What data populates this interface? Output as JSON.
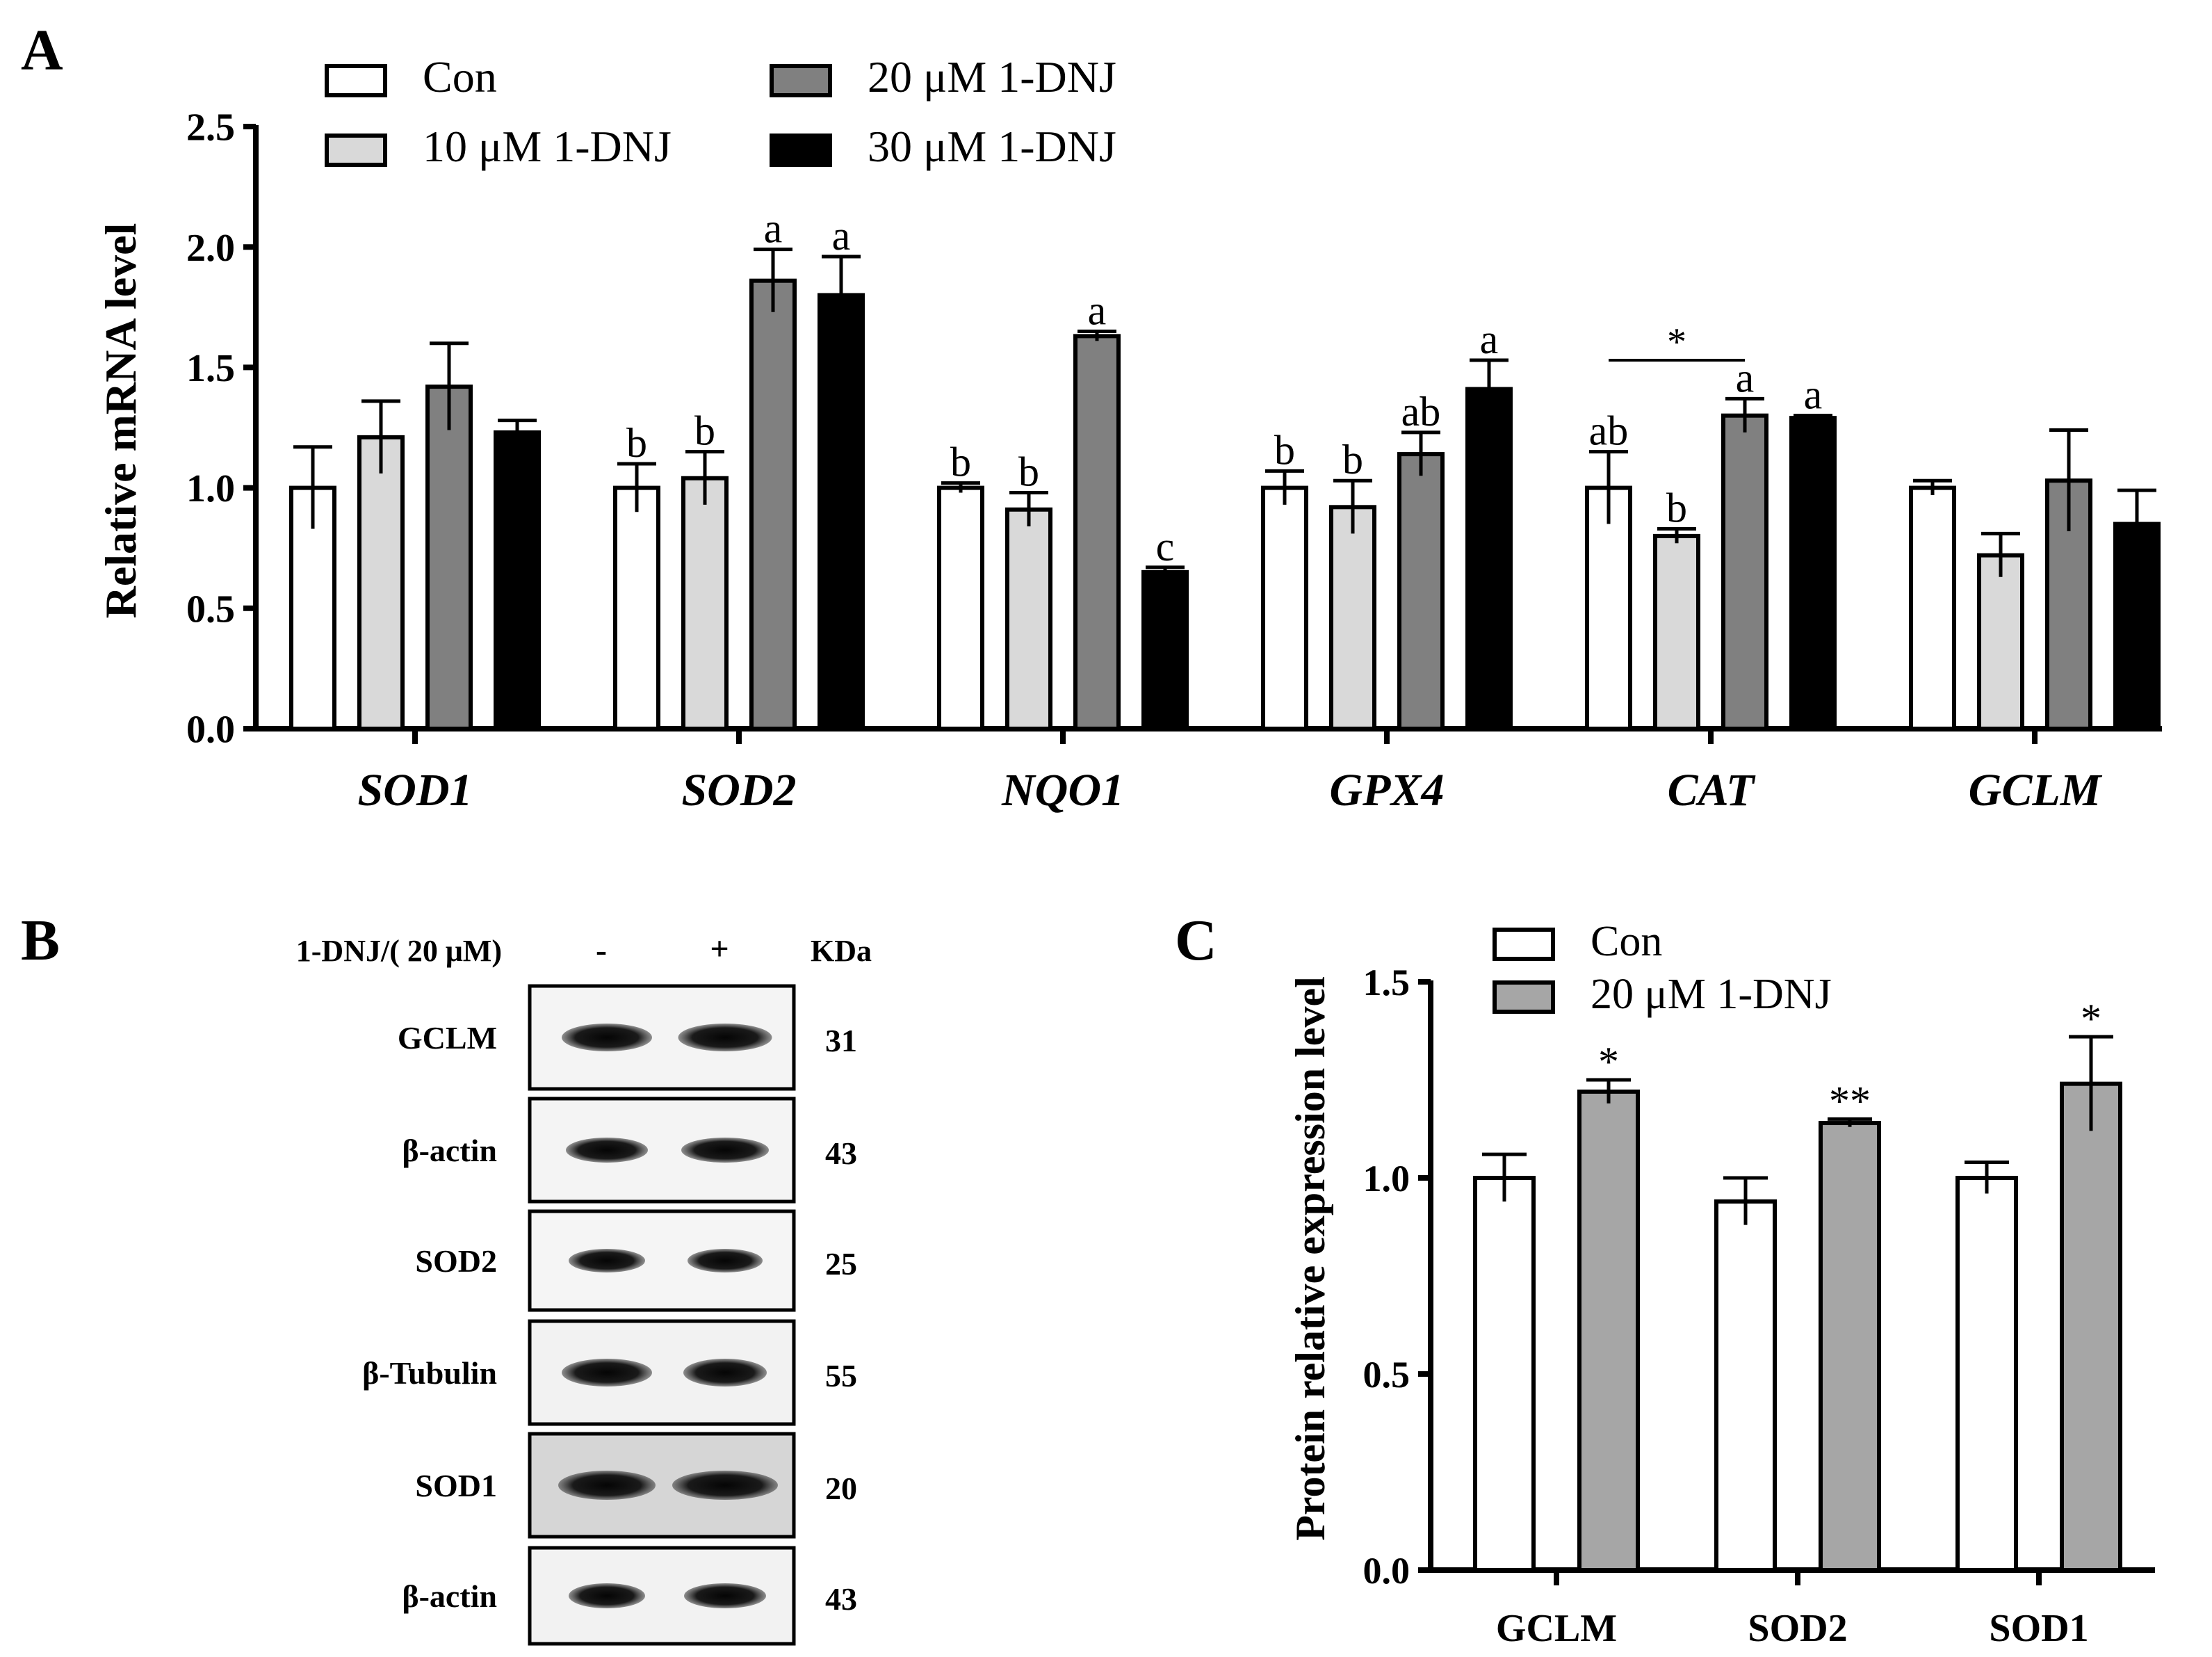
{
  "panels": {
    "A": {
      "letter": "A",
      "chart_data": {
        "type": "bar",
        "ylabel": "Relative mRNA level",
        "ylim": [
          0,
          2.5
        ],
        "yticks": [
          "0.0",
          "0.5",
          "1.0",
          "1.5",
          "2.0",
          "2.5"
        ],
        "categories": [
          "SOD1",
          "SOD2",
          "NQO1",
          "GPX4",
          "CAT",
          "GCLM"
        ],
        "series": [
          {
            "name": "Con",
            "color": "#ffffff",
            "values": [
              1.0,
              1.0,
              1.0,
              1.0,
              1.0,
              1.0
            ],
            "errors": [
              0.17,
              0.1,
              0.02,
              0.07,
              0.15,
              0.03
            ],
            "labels": [
              "",
              "b",
              "b",
              "b",
              "ab",
              ""
            ]
          },
          {
            "name": "10 μM 1-DNJ",
            "color": "#d9d9d9",
            "values": [
              1.21,
              1.04,
              0.91,
              0.92,
              0.8,
              0.72
            ],
            "errors": [
              0.15,
              0.11,
              0.07,
              0.11,
              0.03,
              0.09
            ],
            "labels": [
              "",
              "b",
              "b",
              "b",
              "b",
              ""
            ]
          },
          {
            "name": "20 μM 1-DNJ",
            "color": "#808080",
            "values": [
              1.42,
              1.86,
              1.63,
              1.14,
              1.3,
              1.03
            ],
            "errors": [
              0.18,
              0.13,
              0.02,
              0.09,
              0.07,
              0.21
            ],
            "labels": [
              "",
              "a",
              "a",
              "ab",
              "a",
              ""
            ]
          },
          {
            "name": "30 μM 1-DNJ",
            "color": "#000000",
            "values": [
              1.23,
              1.8,
              0.65,
              1.41,
              1.29,
              0.85
            ],
            "errors": [
              0.05,
              0.16,
              0.02,
              0.12,
              0.01,
              0.14
            ],
            "labels": [
              "",
              "a",
              "c",
              "a",
              "a",
              ""
            ]
          }
        ],
        "annotations": [
          {
            "text": "*",
            "category": "CAT",
            "from_series": 0,
            "to_series": 2
          }
        ]
      }
    },
    "B": {
      "letter": "B",
      "treatment_label": "1-DNJ/( 20 μM)",
      "lane_labels": [
        "-",
        "+"
      ],
      "kda_header": "KDa",
      "bands": [
        {
          "protein": "GCLM",
          "kda": "31"
        },
        {
          "protein": "β-actin",
          "kda": "43"
        },
        {
          "protein": "SOD2",
          "kda": "25"
        },
        {
          "protein": "β-Tubulin",
          "kda": "55"
        },
        {
          "protein": "SOD1",
          "kda": "20"
        },
        {
          "protein": "β-actin",
          "kda": "43"
        }
      ]
    },
    "C": {
      "letter": "C",
      "chart_data": {
        "type": "bar",
        "ylabel": "Protein relative expression level",
        "ylim": [
          0,
          1.5
        ],
        "yticks": [
          "0.0",
          "0.5",
          "1.0",
          "1.5"
        ],
        "categories": [
          "GCLM",
          "SOD2",
          "SOD1"
        ],
        "series": [
          {
            "name": "Con",
            "color": "#ffffff",
            "values": [
              1.0,
              0.94,
              1.0
            ],
            "errors": [
              0.06,
              0.06,
              0.04
            ],
            "labels": [
              "",
              "",
              ""
            ]
          },
          {
            "name": "20 μM 1-DNJ",
            "color": "#a6a6a6",
            "values": [
              1.22,
              1.14,
              1.24
            ],
            "errors": [
              0.03,
              0.01,
              0.12
            ],
            "labels": [
              "*",
              "**",
              "*"
            ]
          }
        ]
      }
    }
  }
}
